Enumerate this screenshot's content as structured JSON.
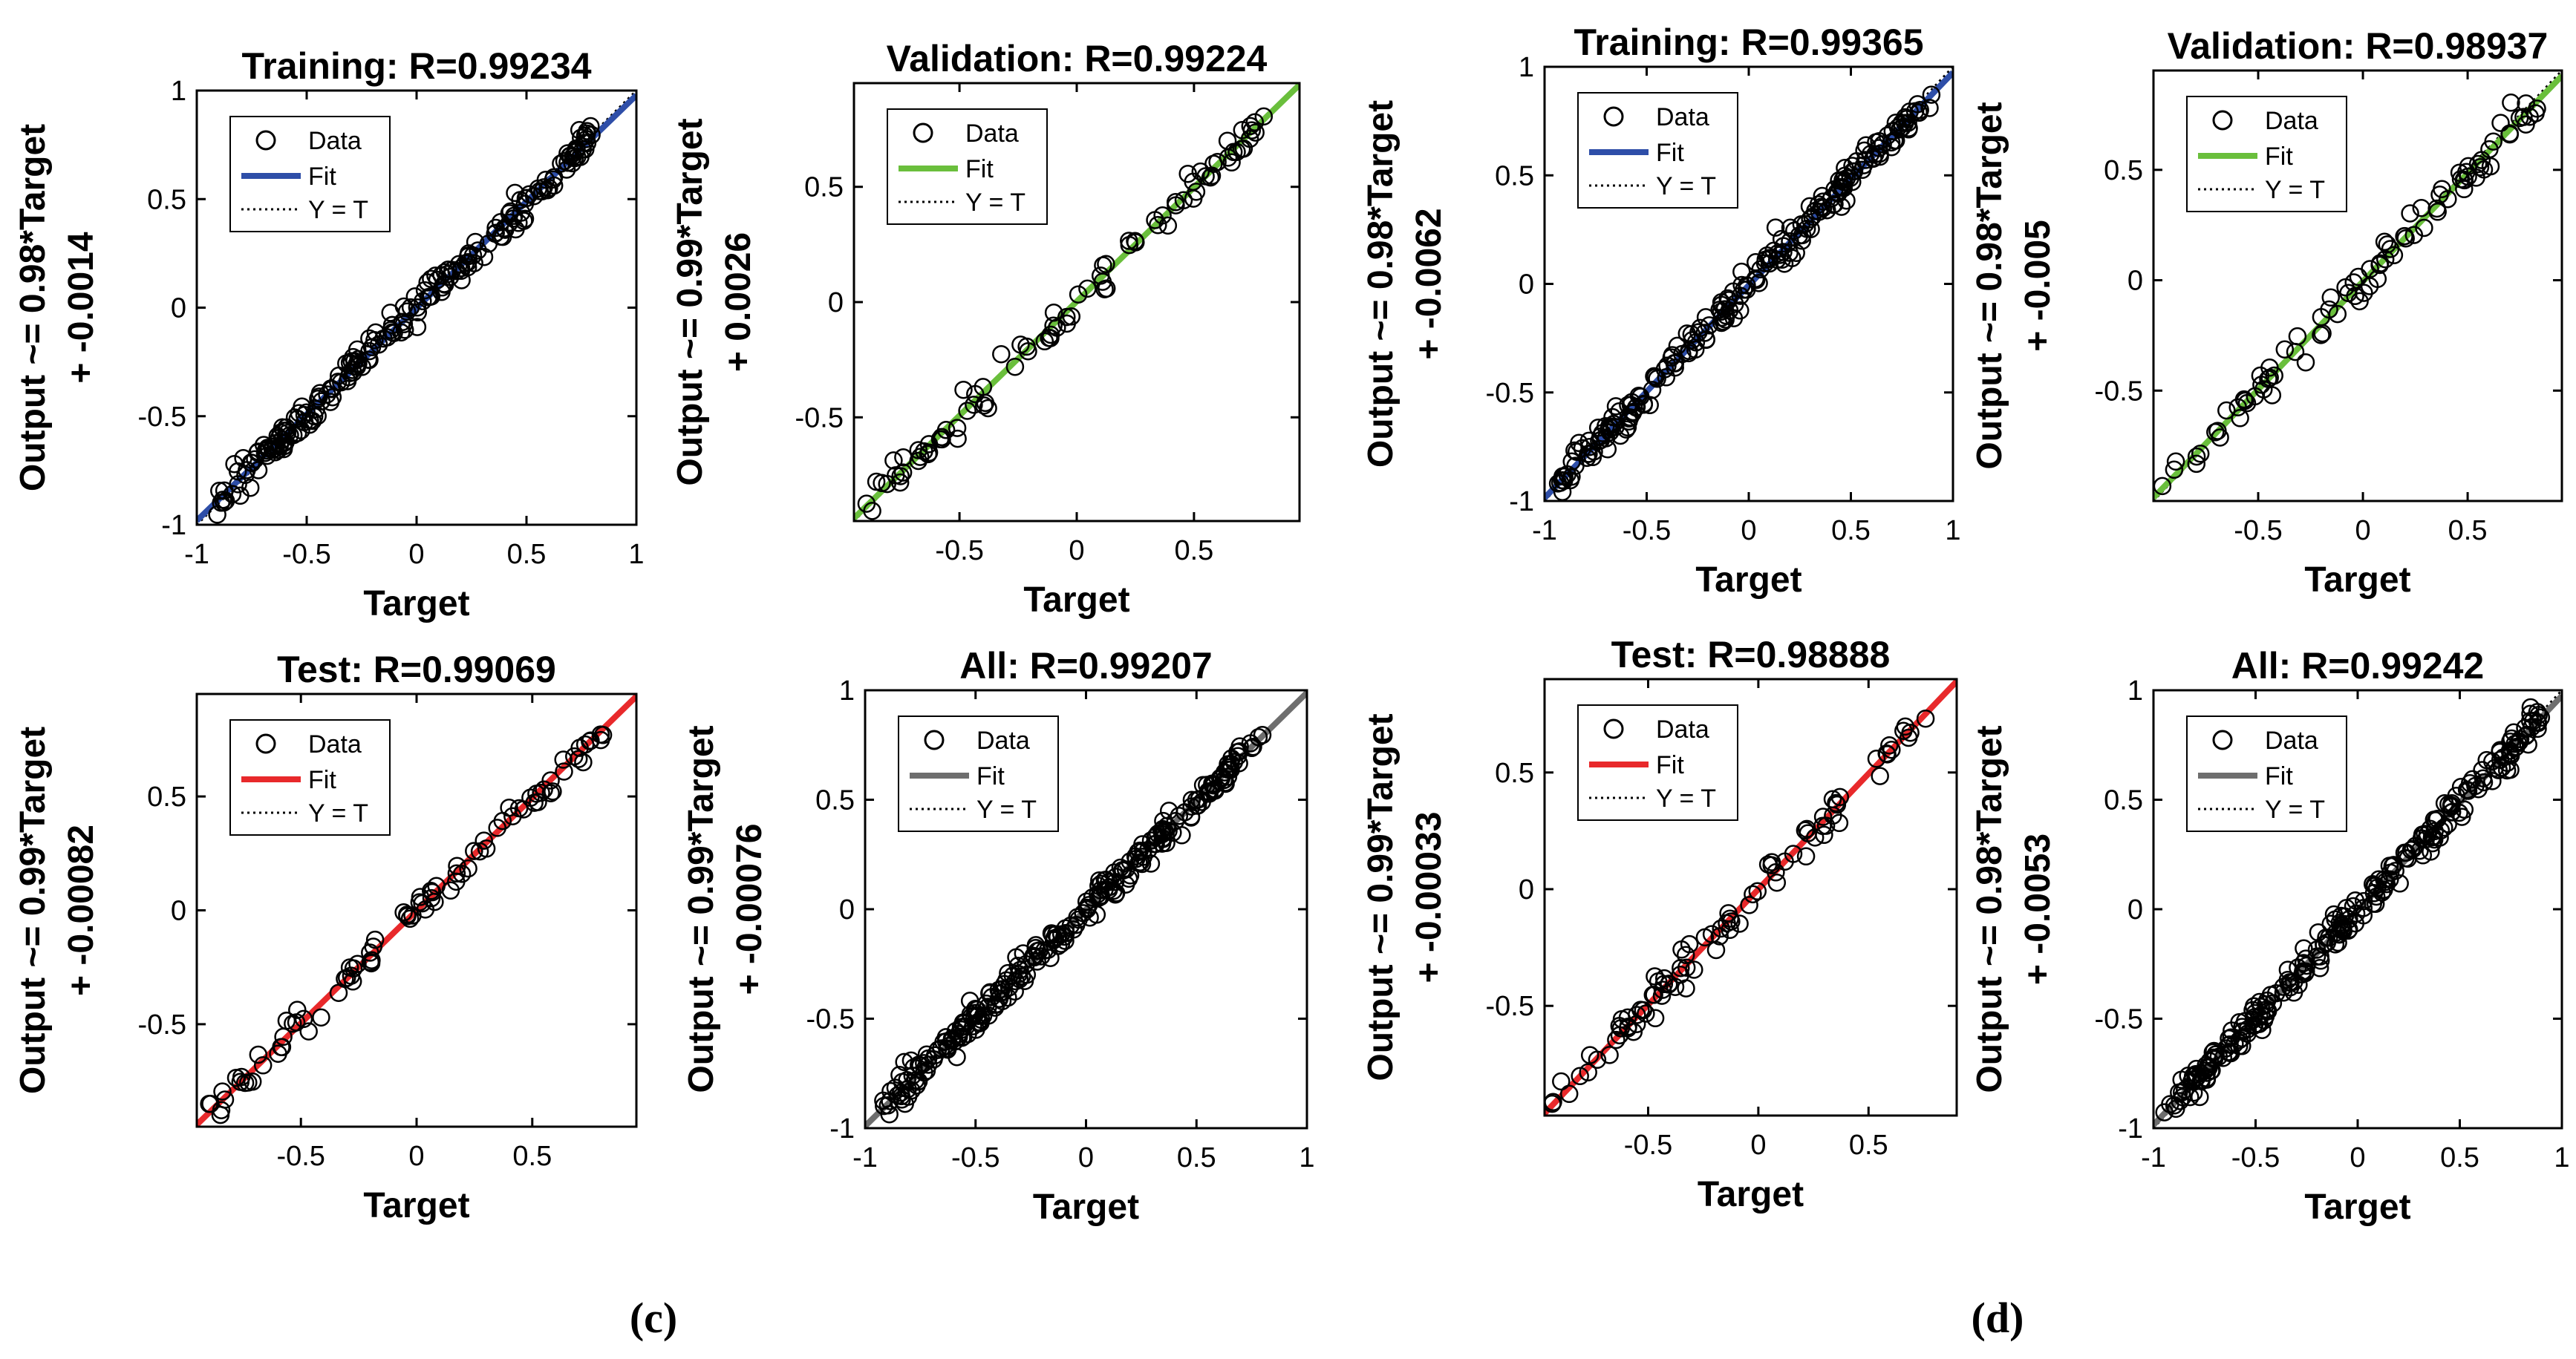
{
  "figure": {
    "panel_labels": [
      "(c)",
      "(d)"
    ]
  },
  "chart_data": [
    {
      "type": "scatter",
      "panel": "(c)",
      "title": "Training: R=0.99234",
      "xlabel": "Target",
      "ylabel_line1": "Output ~= 0.98*Target",
      "ylabel_line2": "+ -0.0014",
      "xlim": [
        -1,
        1
      ],
      "ylim": [
        -1,
        1
      ],
      "xticks": [
        -1,
        -0.5,
        0,
        0.5,
        1
      ],
      "yticks": [
        -1,
        -0.5,
        0,
        0.5,
        1
      ],
      "xticklabels": [
        "-1",
        "-0.5",
        "0",
        "0.5",
        "1"
      ],
      "yticklabels": [
        "-1",
        "-0.5",
        "0",
        "0.5",
        "1"
      ],
      "fit": {
        "slope": 0.98,
        "intercept": -0.0014,
        "color": "#2e4ea8"
      },
      "legend": [
        "Data",
        "Fit",
        "Y = T"
      ],
      "data_range": [
        -0.92,
        0.8
      ],
      "n_points": 220,
      "noise": 0.035
    },
    {
      "type": "scatter",
      "panel": "(c)",
      "title": "Validation: R=0.99224",
      "xlabel": "Target",
      "ylabel_line1": "Output ~= 0.99*Target",
      "ylabel_line2": "+ 0.0026",
      "xlim": [
        -0.95,
        0.95
      ],
      "ylim": [
        -0.95,
        0.95
      ],
      "xticks": [
        -0.5,
        0,
        0.5
      ],
      "yticks": [
        -0.5,
        0,
        0.5
      ],
      "xticklabels": [
        "-0.5",
        "0",
        "0.5"
      ],
      "yticklabels": [
        "-0.5",
        "0",
        "0.5"
      ],
      "fit": {
        "slope": 0.99,
        "intercept": 0.0026,
        "color": "#6abf3c"
      },
      "legend": [
        "Data",
        "Fit",
        "Y = T"
      ],
      "data_range": [
        -0.9,
        0.8
      ],
      "n_points": 90,
      "noise": 0.035
    },
    {
      "type": "scatter",
      "panel": "(c)",
      "title": "Test: R=0.99069",
      "xlabel": "Target",
      "ylabel_line1": "Output ~= 0.99*Target",
      "ylabel_line2": "+ -0.00082",
      "xlim": [
        -0.95,
        0.95
      ],
      "ylim": [
        -0.95,
        0.95
      ],
      "xticks": [
        -0.5,
        0,
        0.5
      ],
      "yticks": [
        -0.5,
        0,
        0.5
      ],
      "xticklabels": [
        "-0.5",
        "0",
        "0.5"
      ],
      "yticklabels": [
        "-0.5",
        "0",
        "0.5"
      ],
      "fit": {
        "slope": 0.99,
        "intercept": -0.00082,
        "color": "#e8292b"
      },
      "legend": [
        "Data",
        "Fit",
        "Y = T"
      ],
      "data_range": [
        -0.9,
        0.82
      ],
      "n_points": 90,
      "noise": 0.04
    },
    {
      "type": "scatter",
      "panel": "(c)",
      "title": "All: R=0.99207",
      "xlabel": "Target",
      "ylabel_line1": "Output ~= 0.99*Target",
      "ylabel_line2": "+ -0.00076",
      "xlim": [
        -1,
        1
      ],
      "ylim": [
        -1,
        1
      ],
      "xticks": [
        -1,
        -0.5,
        0,
        0.5,
        1
      ],
      "yticks": [
        -1,
        -0.5,
        0,
        0.5,
        1
      ],
      "xticklabels": [
        "-1",
        "-0.5",
        "0",
        "0.5",
        "1"
      ],
      "yticklabels": [
        "-1",
        "-0.5",
        "0",
        "0.5",
        "1"
      ],
      "fit": {
        "slope": 0.99,
        "intercept": -0.00076,
        "color": "#6e6e6e"
      },
      "legend": [
        "Data",
        "Fit",
        "Y = T"
      ],
      "data_range": [
        -0.92,
        0.8
      ],
      "n_points": 260,
      "noise": 0.035
    },
    {
      "type": "scatter",
      "panel": "(d)",
      "title": "Training: R=0.99365",
      "xlabel": "Target",
      "ylabel_line1": "Output ~= 0.98*Target",
      "ylabel_line2": "+ -0.0062",
      "xlim": [
        -1,
        1
      ],
      "ylim": [
        -1,
        1
      ],
      "xticks": [
        -1,
        -0.5,
        0,
        0.5,
        1
      ],
      "yticks": [
        -1,
        -0.5,
        0,
        0.5,
        1
      ],
      "xticklabels": [
        "-1",
        "-0.5",
        "0",
        "0.5",
        "1"
      ],
      "yticklabels": [
        "-1",
        "-0.5",
        "0",
        "0.5",
        "1"
      ],
      "fit": {
        "slope": 0.98,
        "intercept": -0.0062,
        "color": "#2e4ea8"
      },
      "legend": [
        "Data",
        "Fit",
        "Y = T"
      ],
      "data_range": [
        -0.96,
        0.9
      ],
      "n_points": 220,
      "noise": 0.035
    },
    {
      "type": "scatter",
      "panel": "(d)",
      "title": "Validation: R=0.98937",
      "xlabel": "Target",
      "ylabel_line1": "Output ~= 0.98*Target",
      "ylabel_line2": "+ -0.005",
      "xlim": [
        -1,
        0.95
      ],
      "ylim": [
        -1,
        0.95
      ],
      "xticks": [
        -0.5,
        0,
        0.5
      ],
      "yticks": [
        -0.5,
        0,
        0.5
      ],
      "xticklabels": [
        "-0.5",
        "0",
        "0.5"
      ],
      "yticklabels": [
        "-0.5",
        "0",
        "0.5"
      ],
      "fit": {
        "slope": 0.98,
        "intercept": -0.005,
        "color": "#6abf3c"
      },
      "legend": [
        "Data",
        "Fit",
        "Y = T"
      ],
      "data_range": [
        -0.96,
        0.9
      ],
      "n_points": 90,
      "noise": 0.04
    },
    {
      "type": "scatter",
      "panel": "(d)",
      "title": "Test: R=0.98888",
      "xlabel": "Target",
      "ylabel_line1": "Output ~= 0.99*Target",
      "ylabel_line2": "+ -0.00033",
      "xlim": [
        -0.97,
        0.9
      ],
      "ylim": [
        -0.97,
        0.9
      ],
      "xticks": [
        -0.5,
        0,
        0.5
      ],
      "yticks": [
        -0.5,
        0,
        0.5
      ],
      "xticklabels": [
        "-0.5",
        "0",
        "0.5"
      ],
      "yticklabels": [
        "-0.5",
        "0",
        "0.5"
      ],
      "fit": {
        "slope": 0.99,
        "intercept": -0.00033,
        "color": "#e8292b"
      },
      "legend": [
        "Data",
        "Fit",
        "Y = T"
      ],
      "data_range": [
        -0.95,
        0.8
      ],
      "n_points": 90,
      "noise": 0.04
    },
    {
      "type": "scatter",
      "panel": "(d)",
      "title": "All: R=0.99242",
      "xlabel": "Target",
      "ylabel_line1": "Output ~= 0.98*Target",
      "ylabel_line2": "+ -0.0053",
      "xlim": [
        -1,
        1
      ],
      "ylim": [
        -1,
        1
      ],
      "xticks": [
        -1,
        -0.5,
        0,
        0.5,
        1
      ],
      "yticks": [
        -1,
        -0.5,
        0,
        0.5,
        1
      ],
      "xticklabels": [
        "-1",
        "-0.5",
        "0",
        "0.5",
        "1"
      ],
      "yticklabels": [
        "-1",
        "-0.5",
        "0",
        "0.5",
        "1"
      ],
      "fit": {
        "slope": 0.98,
        "intercept": -0.0053,
        "color": "#6e6e6e"
      },
      "legend": [
        "Data",
        "Fit",
        "Y = T"
      ],
      "data_range": [
        -0.96,
        0.9
      ],
      "n_points": 260,
      "noise": 0.035
    }
  ]
}
